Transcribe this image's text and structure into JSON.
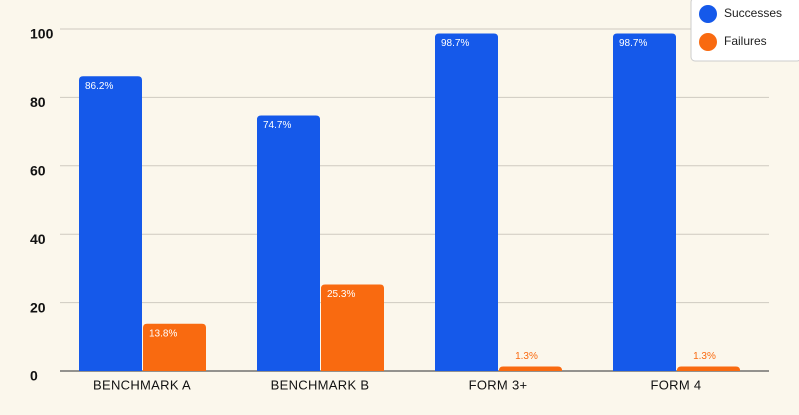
{
  "chart_data": {
    "type": "bar",
    "categories": [
      "BENCHMARK A",
      "BENCHMARK B",
      "FORM 3+",
      "FORM 4"
    ],
    "series": [
      {
        "name": "Successes",
        "color": "#1559ea",
        "values": [
          86.2,
          74.7,
          98.7,
          98.7
        ],
        "value_labels": [
          "86.2%",
          "74.7%",
          "98.7%",
          "98.7%"
        ]
      },
      {
        "name": "Failures",
        "color": "#f96a10",
        "values": [
          13.8,
          25.3,
          1.3,
          1.3
        ],
        "value_labels": [
          "13.8%",
          "25.3%",
          "1.3%",
          "1.3%"
        ]
      }
    ],
    "ylim": [
      0,
      100
    ],
    "yticks": [
      0,
      20,
      40,
      60,
      80,
      100
    ],
    "grid": true,
    "legend": "top-right"
  }
}
